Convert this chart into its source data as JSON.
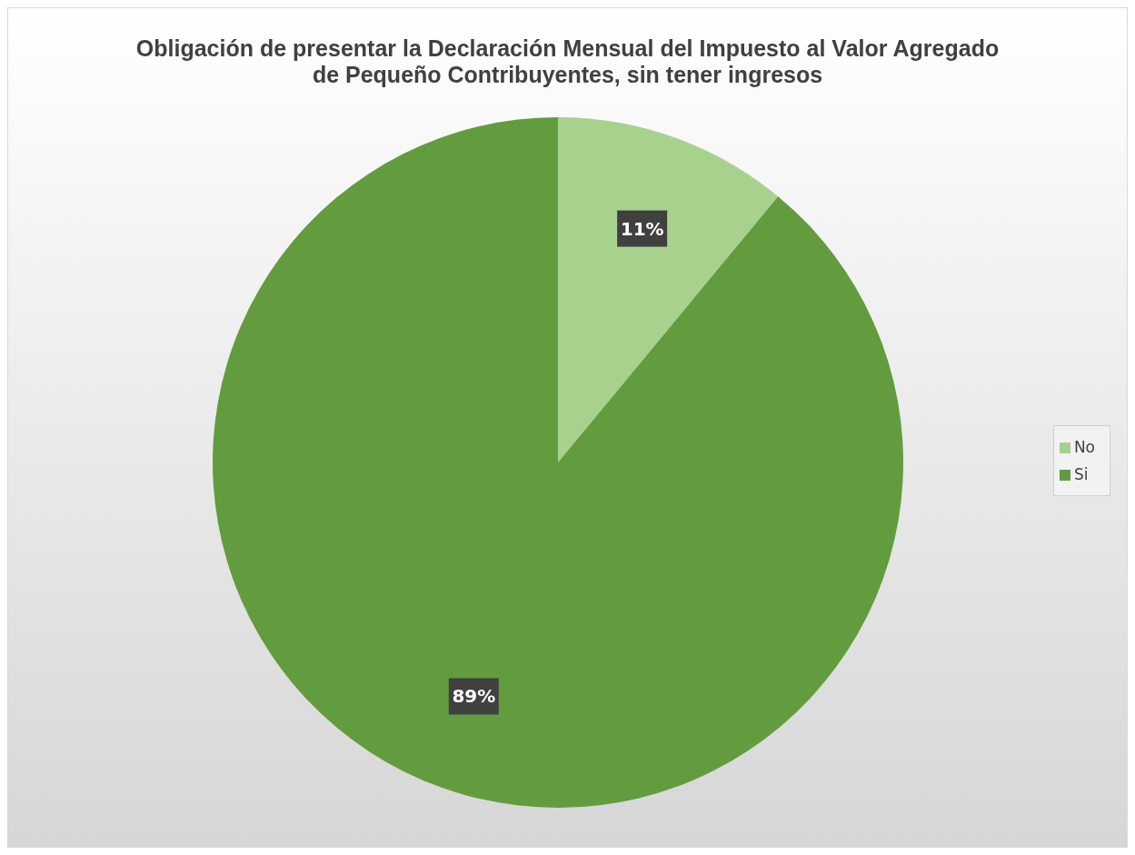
{
  "chart_data": {
    "type": "pie",
    "title": "Obligación de presentar la Declaración Mensual del Impuesto al Valor Agregado de Pequeño Contribuyentes, sin tener ingresos",
    "categories": [
      "No",
      "Si"
    ],
    "values": [
      11,
      89
    ],
    "colors": [
      "#a9d18e",
      "#629c3e"
    ],
    "value_labels": [
      "11%",
      "89%"
    ],
    "legend": "right"
  }
}
